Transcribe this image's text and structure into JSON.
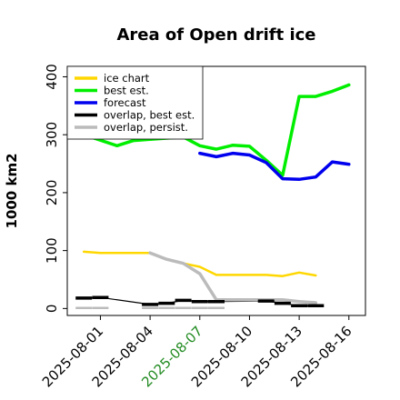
{
  "chart_data": {
    "type": "line",
    "title": "Area of Open drift ice",
    "ylabel": "1000 km2",
    "xlabel": "",
    "ylim": [
      -12,
      418
    ],
    "xlim": [
      "2025-07-30",
      "2025-08-17"
    ],
    "y_ticks": [
      0,
      100,
      200,
      300,
      400
    ],
    "x_ticks": [
      {
        "label": "2025-08-01",
        "date": "2025-08-01",
        "color": "#000000"
      },
      {
        "label": "2025-08-04",
        "date": "2025-08-04",
        "color": "#000000"
      },
      {
        "label": "2025-08-07",
        "date": "2025-08-07",
        "color": "#228B22"
      },
      {
        "label": "2025-08-10",
        "date": "2025-08-10",
        "color": "#000000"
      },
      {
        "label": "2025-08-13",
        "date": "2025-08-13",
        "color": "#000000"
      },
      {
        "label": "2025-08-16",
        "date": "2025-08-16",
        "color": "#000000"
      }
    ],
    "grid": false,
    "legend_position": "top-left",
    "series": [
      {
        "name": "ice chart",
        "color": "#FFD700",
        "width": 2.5,
        "x": [
          "2025-07-31",
          "2025-08-01",
          "2025-08-04",
          "2025-08-05",
          "2025-08-06",
          "2025-08-07",
          "2025-08-08",
          "2025-08-11",
          "2025-08-12",
          "2025-08-13",
          "2025-08-14"
        ],
        "y": [
          98,
          96,
          96,
          85,
          78,
          72,
          58,
          58,
          56,
          62,
          57
        ]
      },
      {
        "name": "best est.",
        "color": "#00EE00",
        "width": 3.5,
        "x": [
          "2025-07-31",
          "2025-08-02",
          "2025-08-03",
          "2025-08-04",
          "2025-08-05",
          "2025-08-06",
          "2025-08-07",
          "2025-08-08",
          "2025-08-09",
          "2025-08-10",
          "2025-08-11",
          "2025-08-12",
          "2025-08-13",
          "2025-08-14",
          "2025-08-15",
          "2025-08-16"
        ],
        "y": [
          300,
          281,
          290,
          292,
          294,
          296,
          281,
          275,
          282,
          280,
          256,
          230,
          366,
          366,
          375,
          386
        ]
      },
      {
        "name": "forecast",
        "color": "#0000EE",
        "width": 3.5,
        "x": [
          "2025-08-07",
          "2025-08-08",
          "2025-08-09",
          "2025-08-10",
          "2025-08-11",
          "2025-08-12",
          "2025-08-13",
          "2025-08-14",
          "2025-08-15",
          "2025-08-16"
        ],
        "y": [
          268,
          262,
          268,
          265,
          252,
          224,
          223,
          227,
          253,
          249
        ]
      },
      {
        "name": "overlap, best est.",
        "color": "#000000",
        "width": 1.2,
        "x": [
          "2025-07-31",
          "2025-08-01",
          "2025-08-04",
          "2025-08-05",
          "2025-08-06",
          "2025-08-07",
          "2025-08-08",
          "2025-08-11",
          "2025-08-12",
          "2025-08-13",
          "2025-08-14"
        ],
        "y": [
          18,
          19,
          7,
          9,
          14,
          12,
          12,
          13,
          9,
          5,
          5
        ]
      },
      {
        "name": "overlap, persist.",
        "color": "#BBBBBB",
        "width": 3.5,
        "x": [
          "2025-08-04",
          "2025-08-05",
          "2025-08-06",
          "2025-08-07",
          "2025-08-08",
          "2025-08-11",
          "2025-08-12",
          "2025-08-13",
          "2025-08-14"
        ],
        "y": [
          96,
          85,
          78,
          60,
          15,
          15,
          15,
          12,
          10
        ]
      }
    ],
    "markers": [
      {
        "color": "#000000",
        "width": 3.5,
        "x": [
          "2025-07-31",
          "2025-08-01",
          "2025-08-04",
          "2025-08-05",
          "2025-08-06",
          "2025-08-07",
          "2025-08-08",
          "2025-08-11",
          "2025-08-12",
          "2025-08-13",
          "2025-08-14"
        ],
        "y": [
          18,
          19,
          7,
          9,
          14,
          12,
          12,
          13,
          9,
          5,
          5
        ]
      },
      {
        "color": "#BBBBBB",
        "width": 2.5,
        "x": [
          "2025-07-31",
          "2025-08-01",
          "2025-08-04",
          "2025-08-05",
          "2025-08-06",
          "2025-08-07",
          "2025-08-08"
        ],
        "y": [
          1,
          1,
          1,
          1,
          1,
          1,
          1
        ]
      }
    ]
  }
}
